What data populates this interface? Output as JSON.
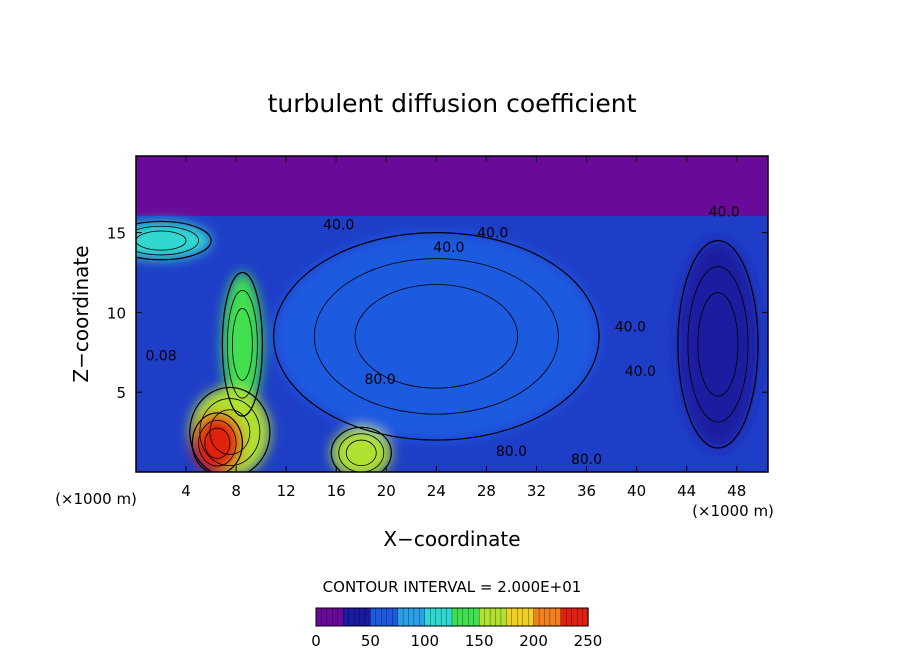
{
  "chart_data": {
    "type": "heatmap",
    "title": "turbulent diffusion coefficient",
    "xlabel": "X−coordinate",
    "ylabel": "Z−coordinate",
    "x_unit_label": "(×1000 m)",
    "y_unit_label": "(×1000 m)",
    "xlim": [
      0,
      50.5
    ],
    "ylim": [
      0,
      19.8
    ],
    "x_ticks": [
      4,
      8,
      12,
      16,
      20,
      24,
      28,
      32,
      36,
      40,
      44,
      48
    ],
    "y_ticks": [
      5,
      10,
      15
    ],
    "contour_interval_label": "CONTOUR INTERVAL = 2.000E+01",
    "colorbar": {
      "min": 0,
      "max": 250,
      "ticks": [
        0,
        50,
        100,
        150,
        200,
        250
      ],
      "colors": [
        "#6a0a9a",
        "#1a1aa0",
        "#1e5ae0",
        "#2aa0e8",
        "#30d8d0",
        "#40e050",
        "#b0e030",
        "#f0d020",
        "#f08020",
        "#e02010"
      ]
    },
    "background_value": 0,
    "features": [
      {
        "x": 6.5,
        "z": 1.8,
        "rx": 2.0,
        "rz": 1.9,
        "value": 235
      },
      {
        "x": 7.5,
        "z": 2.5,
        "rx": 3.2,
        "rz": 2.8,
        "value": 165
      },
      {
        "x": 18.0,
        "z": 1.2,
        "rx": 2.4,
        "rz": 1.6,
        "value": 150
      },
      {
        "x": 8.5,
        "z": 8.0,
        "rx": 1.6,
        "rz": 4.5,
        "value": 130
      },
      {
        "x": 24.0,
        "z": 8.5,
        "rx": 13.0,
        "rz": 6.5,
        "value": 55
      },
      {
        "x": 46.5,
        "z": 8.0,
        "rx": 3.2,
        "rz": 6.5,
        "value": 35
      },
      {
        "x": 2.0,
        "z": 14.5,
        "rx": 4.0,
        "rz": 1.2,
        "value": 110
      }
    ],
    "contour_labels": [
      {
        "text": "40.0",
        "x": 16.2,
        "z": 15.2
      },
      {
        "text": "40.0",
        "x": 28.5,
        "z": 14.7
      },
      {
        "text": "40.0",
        "x": 25.0,
        "z": 13.8
      },
      {
        "text": "40.0",
        "x": 39.5,
        "z": 8.8
      },
      {
        "text": "40.0",
        "x": 40.3,
        "z": 6.0
      },
      {
        "text": "40.0",
        "x": 47.0,
        "z": 16.0
      },
      {
        "text": "80.0",
        "x": 19.5,
        "z": 5.5
      },
      {
        "text": "80.0",
        "x": 30.0,
        "z": 1.0
      },
      {
        "text": "80.0",
        "x": 36.0,
        "z": 0.5
      },
      {
        "text": "0.08",
        "x": 2.0,
        "z": 7.0
      }
    ]
  }
}
